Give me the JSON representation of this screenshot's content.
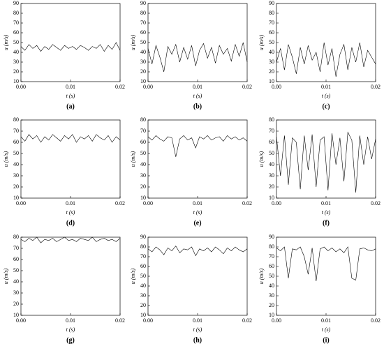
{
  "chart_data": [
    {
      "type": "line",
      "caption": "(a)",
      "xlabel": "t (s)",
      "ylabel": "u (m/s)",
      "color": "#000000",
      "x": [
        0,
        0.0008,
        0.0016,
        0.0024,
        0.0032,
        0.004,
        0.0048,
        0.0056,
        0.0064,
        0.0072,
        0.008,
        0.0088,
        0.0096,
        0.0104,
        0.0112,
        0.012,
        0.0128,
        0.0136,
        0.0144,
        0.0152,
        0.016,
        0.0168,
        0.0176,
        0.0184,
        0.0192,
        0.02
      ],
      "values": [
        46,
        42,
        48,
        44,
        47,
        41,
        46,
        43,
        48,
        45,
        42,
        47,
        44,
        46,
        43,
        47,
        45,
        42,
        46,
        44,
        48,
        41,
        47,
        43,
        50,
        42
      ],
      "xlim": [
        0,
        0.02
      ],
      "ylim": [
        10,
        90
      ],
      "xticks": [
        {
          "value": 0,
          "label": "0.00"
        },
        0.01,
        0.02
      ],
      "yticks": [
        10,
        20,
        30,
        40,
        50,
        60,
        70,
        80,
        90
      ]
    },
    {
      "type": "line",
      "caption": "(b)",
      "xlabel": "t (s)",
      "ylabel": "u (m/s)",
      "color": "#000000",
      "x": [
        0,
        0.0008,
        0.0016,
        0.0024,
        0.0032,
        0.004,
        0.0048,
        0.0056,
        0.0064,
        0.0072,
        0.008,
        0.0088,
        0.0096,
        0.0104,
        0.0112,
        0.012,
        0.0128,
        0.0136,
        0.0144,
        0.0152,
        0.016,
        0.0168,
        0.0176,
        0.0184,
        0.0192,
        0.02
      ],
      "values": [
        44,
        28,
        47,
        35,
        20,
        46,
        38,
        48,
        30,
        45,
        33,
        47,
        26,
        42,
        49,
        34,
        45,
        29,
        47,
        38,
        44,
        31,
        48,
        36,
        50,
        30
      ],
      "xlim": [
        0,
        0.02
      ],
      "ylim": [
        10,
        90
      ],
      "xticks": [
        {
          "value": 0,
          "label": "0.00"
        },
        0.01,
        0.02
      ],
      "yticks": [
        10,
        20,
        30,
        40,
        50,
        60,
        70,
        80,
        90
      ]
    },
    {
      "type": "line",
      "caption": "(c)",
      "xlabel": "t (s)",
      "ylabel": "u (m/s)",
      "color": "#000000",
      "x": [
        0,
        0.0008,
        0.0016,
        0.0024,
        0.0032,
        0.004,
        0.0048,
        0.0056,
        0.0064,
        0.0072,
        0.008,
        0.0088,
        0.0096,
        0.0104,
        0.0112,
        0.012,
        0.0128,
        0.0136,
        0.0144,
        0.0152,
        0.016,
        0.0168,
        0.0176,
        0.0184,
        0.0192,
        0.02
      ],
      "values": [
        30,
        44,
        22,
        48,
        35,
        18,
        45,
        28,
        47,
        32,
        40,
        20,
        50,
        27,
        44,
        15,
        38,
        48,
        22,
        45,
        30,
        50,
        25,
        42,
        35,
        28
      ],
      "xlim": [
        0,
        0.02
      ],
      "ylim": [
        10,
        90
      ],
      "xticks": [
        {
          "value": 0,
          "label": "0.00"
        },
        0.01,
        0.02
      ],
      "yticks": [
        10,
        20,
        30,
        40,
        50,
        60,
        70,
        80,
        90
      ]
    },
    {
      "type": "line",
      "caption": "(d)",
      "xlabel": "t (s)",
      "ylabel": "u (m/s)",
      "color": "#000000",
      "x": [
        0,
        0.0008,
        0.0016,
        0.0024,
        0.0032,
        0.004,
        0.0048,
        0.0056,
        0.0064,
        0.0072,
        0.008,
        0.0088,
        0.0096,
        0.0104,
        0.0112,
        0.012,
        0.0128,
        0.0136,
        0.0144,
        0.0152,
        0.016,
        0.0168,
        0.0176,
        0.0184,
        0.0192,
        0.02
      ],
      "values": [
        65,
        61,
        67,
        63,
        66,
        60,
        65,
        62,
        67,
        64,
        61,
        66,
        63,
        67,
        60,
        65,
        63,
        66,
        61,
        67,
        64,
        62,
        66,
        60,
        65,
        62
      ],
      "xlim": [
        0,
        0.02
      ],
      "ylim": [
        10,
        80
      ],
      "xticks": [
        {
          "value": 0,
          "label": "0.00"
        },
        0.01,
        0.02
      ],
      "yticks": [
        10,
        20,
        30,
        40,
        50,
        60,
        70,
        80
      ]
    },
    {
      "type": "line",
      "caption": "(e)",
      "xlabel": "t (s)",
      "ylabel": "u (m/s)",
      "color": "#000000",
      "x": [
        0,
        0.0008,
        0.0016,
        0.0024,
        0.0032,
        0.004,
        0.0048,
        0.0056,
        0.0064,
        0.0072,
        0.008,
        0.0088,
        0.0096,
        0.0104,
        0.0112,
        0.012,
        0.0128,
        0.0136,
        0.0144,
        0.0152,
        0.016,
        0.0168,
        0.0176,
        0.0184,
        0.0192,
        0.02
      ],
      "values": [
        65,
        62,
        66,
        63,
        61,
        65,
        64,
        47,
        63,
        66,
        62,
        64,
        55,
        65,
        63,
        66,
        62,
        64,
        65,
        61,
        66,
        63,
        65,
        62,
        64,
        61
      ],
      "xlim": [
        0,
        0.02
      ],
      "ylim": [
        10,
        80
      ],
      "xticks": [
        {
          "value": 0,
          "label": "0.00"
        },
        0.01,
        0.02
      ],
      "yticks": [
        10,
        20,
        30,
        40,
        50,
        60,
        70,
        80
      ]
    },
    {
      "type": "line",
      "caption": "(f)",
      "xlabel": "t (s)",
      "ylabel": "u (m/s)",
      "color": "#000000",
      "x": [
        0,
        0.0008,
        0.0016,
        0.0024,
        0.0032,
        0.004,
        0.0048,
        0.0056,
        0.0064,
        0.0072,
        0.008,
        0.0088,
        0.0096,
        0.0104,
        0.0112,
        0.012,
        0.0128,
        0.0136,
        0.0144,
        0.0152,
        0.016,
        0.0168,
        0.0176,
        0.0184,
        0.0192,
        0.02
      ],
      "values": [
        65,
        30,
        66,
        22,
        64,
        60,
        18,
        66,
        35,
        67,
        20,
        62,
        65,
        17,
        68,
        40,
        64,
        25,
        69,
        62,
        15,
        66,
        40,
        65,
        45,
        63
      ],
      "xlim": [
        0,
        0.02
      ],
      "ylim": [
        10,
        80
      ],
      "xticks": [
        {
          "value": 0,
          "label": "0.00"
        },
        0.01,
        0.02
      ],
      "yticks": [
        10,
        20,
        30,
        40,
        50,
        60,
        70,
        80
      ]
    },
    {
      "type": "line",
      "caption": "(g)",
      "xlabel": "t (s)",
      "ylabel": "u (m/s)",
      "color": "#000000",
      "x": [
        0,
        0.0008,
        0.0016,
        0.0024,
        0.0032,
        0.004,
        0.0048,
        0.0056,
        0.0064,
        0.0072,
        0.008,
        0.0088,
        0.0096,
        0.0104,
        0.0112,
        0.012,
        0.0128,
        0.0136,
        0.0144,
        0.0152,
        0.016,
        0.0168,
        0.0176,
        0.0184,
        0.0192,
        0.02
      ],
      "values": [
        78,
        76,
        79,
        77,
        80,
        75,
        78,
        77,
        79,
        76,
        78,
        80,
        77,
        78,
        76,
        79,
        78,
        77,
        80,
        76,
        78,
        79,
        77,
        78,
        76,
        79
      ],
      "xlim": [
        0,
        0.02
      ],
      "ylim": [
        10,
        80
      ],
      "xticks": [
        {
          "value": 0,
          "label": "0.00"
        },
        0.01,
        0.02
      ],
      "yticks": [
        10,
        20,
        30,
        40,
        50,
        60,
        70,
        80
      ]
    },
    {
      "type": "line",
      "caption": "(h)",
      "xlabel": "t (s)",
      "ylabel": "u (m/s)",
      "color": "#000000",
      "x": [
        0,
        0.0008,
        0.0016,
        0.0024,
        0.0032,
        0.004,
        0.0048,
        0.0056,
        0.0064,
        0.0072,
        0.008,
        0.0088,
        0.0096,
        0.0104,
        0.0112,
        0.012,
        0.0128,
        0.0136,
        0.0144,
        0.0152,
        0.016,
        0.0168,
        0.0176,
        0.0184,
        0.0192,
        0.02
      ],
      "values": [
        78,
        75,
        80,
        77,
        72,
        79,
        76,
        81,
        74,
        78,
        77,
        80,
        71,
        78,
        76,
        79,
        75,
        80,
        77,
        73,
        79,
        76,
        80,
        77,
        75,
        78
      ],
      "xlim": [
        0,
        0.02
      ],
      "ylim": [
        10,
        90
      ],
      "xticks": [
        {
          "value": 0,
          "label": "0.00"
        },
        0.01,
        0.02
      ],
      "yticks": [
        10,
        20,
        30,
        40,
        50,
        60,
        70,
        80,
        90
      ]
    },
    {
      "type": "line",
      "caption": "(i)",
      "xlabel": "t (s)",
      "ylabel": "u (m/s)",
      "color": "#000000",
      "x": [
        0,
        0.0008,
        0.0016,
        0.0024,
        0.0032,
        0.004,
        0.0048,
        0.0056,
        0.0064,
        0.0072,
        0.008,
        0.0088,
        0.0096,
        0.0104,
        0.0112,
        0.012,
        0.0128,
        0.0136,
        0.0144,
        0.0152,
        0.016,
        0.0168,
        0.0176,
        0.0184,
        0.0192,
        0.02
      ],
      "values": [
        79,
        76,
        80,
        48,
        78,
        77,
        80,
        70,
        52,
        79,
        45,
        78,
        80,
        76,
        79,
        75,
        78,
        74,
        80,
        48,
        46,
        78,
        79,
        77,
        76,
        78
      ],
      "xlim": [
        0,
        0.02
      ],
      "ylim": [
        10,
        90
      ],
      "xticks": [
        {
          "value": 0,
          "label": "0.00"
        },
        0.01,
        0.02
      ],
      "yticks": [
        10,
        20,
        30,
        40,
        50,
        60,
        70,
        80,
        90
      ]
    }
  ]
}
